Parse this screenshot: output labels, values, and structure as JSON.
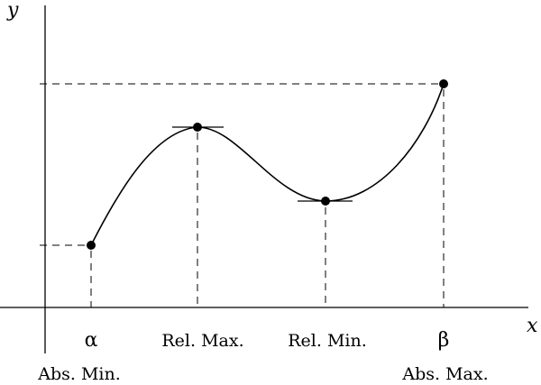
{
  "axes": {
    "x_label": "x",
    "y_label": "y"
  },
  "x_labels": {
    "alpha": "α",
    "rel_max": "Rel. Max.",
    "rel_min": "Rel. Min.",
    "beta": "β"
  },
  "bottom_labels": {
    "abs_min": "Abs. Min.",
    "abs_max": "Abs. Max."
  }
}
